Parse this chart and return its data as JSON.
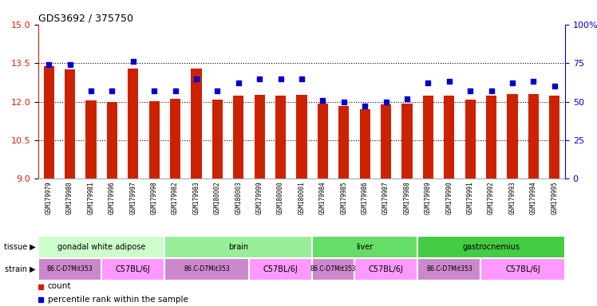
{
  "title": "GDS3692 / 375750",
  "samples": [
    "GSM179979",
    "GSM179980",
    "GSM179981",
    "GSM179996",
    "GSM179997",
    "GSM179998",
    "GSM179982",
    "GSM179983",
    "GSM180002",
    "GSM180003",
    "GSM179999",
    "GSM180000",
    "GSM180001",
    "GSM179984",
    "GSM179985",
    "GSM179986",
    "GSM179987",
    "GSM179988",
    "GSM179989",
    "GSM179990",
    "GSM179991",
    "GSM179992",
    "GSM179993",
    "GSM179994",
    "GSM179995"
  ],
  "counts": [
    13.37,
    13.25,
    12.06,
    11.98,
    13.28,
    12.02,
    12.1,
    13.28,
    12.08,
    12.22,
    12.25,
    12.22,
    12.25,
    11.92,
    11.82,
    11.72,
    11.9,
    11.92,
    12.22,
    12.22,
    12.08,
    12.22,
    12.3,
    12.3,
    12.22
  ],
  "percentiles": [
    74,
    74,
    57,
    57,
    76,
    57,
    57,
    65,
    57,
    62,
    65,
    65,
    65,
    51,
    50,
    47,
    50,
    52,
    62,
    63,
    57,
    57,
    62,
    63,
    60
  ],
  "ylim_left": [
    9,
    15
  ],
  "ylim_right": [
    0,
    100
  ],
  "yticks_left": [
    9,
    10.5,
    12,
    13.5,
    15
  ],
  "yticks_right": [
    0,
    25,
    50,
    75,
    100
  ],
  "bar_color": "#cc2200",
  "dot_color": "#0000cc",
  "xtick_bg_color": "#cccccc",
  "tissues": [
    {
      "label": "gonadal white adipose",
      "start": 0,
      "end": 6,
      "color": "#ccffcc"
    },
    {
      "label": "brain",
      "start": 6,
      "end": 13,
      "color": "#99ee99"
    },
    {
      "label": "liver",
      "start": 13,
      "end": 18,
      "color": "#66dd66"
    },
    {
      "label": "gastrocnemius",
      "start": 18,
      "end": 25,
      "color": "#44cc44"
    }
  ],
  "strains": [
    {
      "label": "B6.C-D7Mit353",
      "start": 0,
      "end": 3,
      "color": "#cc88cc"
    },
    {
      "label": "C57BL/6J",
      "start": 3,
      "end": 6,
      "color": "#ff99ff"
    },
    {
      "label": "B6.C-D7Mit353",
      "start": 6,
      "end": 10,
      "color": "#cc88cc"
    },
    {
      "label": "C57BL/6J",
      "start": 10,
      "end": 13,
      "color": "#ff99ff"
    },
    {
      "label": "B6.C-D7Mit353",
      "start": 13,
      "end": 15,
      "color": "#cc88cc"
    },
    {
      "label": "C57BL/6J",
      "start": 15,
      "end": 18,
      "color": "#ff99ff"
    },
    {
      "label": "B6.C-D7Mit353",
      "start": 18,
      "end": 21,
      "color": "#cc88cc"
    },
    {
      "label": "C57BL/6J",
      "start": 21,
      "end": 25,
      "color": "#ff99ff"
    }
  ],
  "grid_values": [
    10.5,
    12.0,
    13.5
  ],
  "legend_count_label": "count",
  "legend_pct_label": "percentile rank within the sample"
}
